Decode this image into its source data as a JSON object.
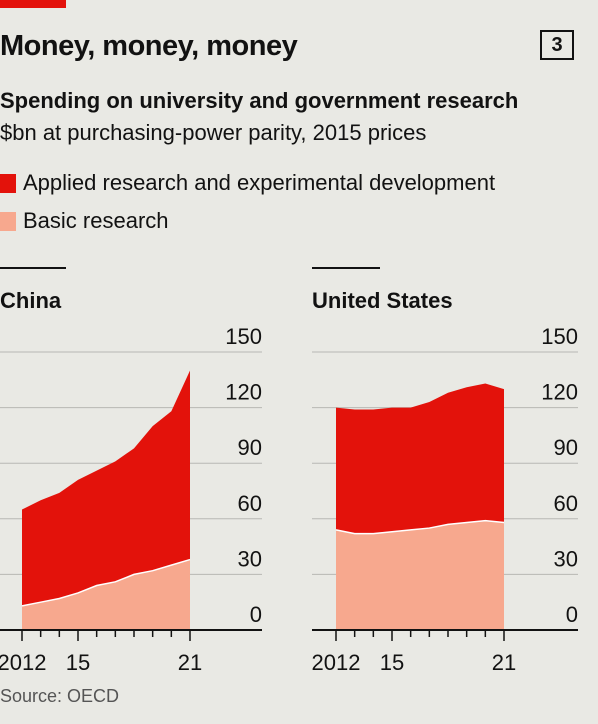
{
  "header": {
    "title": "Money, money, money",
    "chart_number": "3",
    "subtitle": "Spending on university and government research",
    "units": "$bn at purchasing-power parity, 2015 prices"
  },
  "source": "Source: OECD",
  "colors": {
    "applied": "#e3120b",
    "basic": "#f7a88e",
    "accent": "#e3120b"
  },
  "chart_data": [
    {
      "type": "area",
      "stacked": true,
      "title": "China",
      "x": [
        2012,
        2013,
        2014,
        2015,
        2016,
        2017,
        2018,
        2019,
        2020,
        2021
      ],
      "x_tick_labels": [
        "2012",
        "15",
        "21"
      ],
      "y_ticks": [
        "150",
        "120",
        "90",
        "60",
        "30",
        "0"
      ],
      "ylim": [
        0,
        150
      ],
      "legend": [
        "Applied research and experimental development",
        "Basic research"
      ],
      "legend_placement": "top-left",
      "grid": true,
      "series": [
        {
          "name": "Basic research",
          "values": [
            13,
            15,
            17,
            20,
            24,
            26,
            30,
            32,
            35,
            38
          ]
        },
        {
          "name": "Applied research and experimental development",
          "values": [
            52,
            55,
            57,
            61,
            62,
            65,
            68,
            78,
            83,
            102
          ]
        }
      ]
    },
    {
      "type": "area",
      "stacked": true,
      "title": "United States",
      "x": [
        2012,
        2013,
        2014,
        2015,
        2016,
        2017,
        2018,
        2019,
        2020,
        2021
      ],
      "x_tick_labels": [
        "2012",
        "15",
        "21"
      ],
      "y_ticks": [
        "150",
        "120",
        "90",
        "60",
        "30",
        "0"
      ],
      "ylim": [
        0,
        150
      ],
      "grid": true,
      "series": [
        {
          "name": "Basic research",
          "values": [
            54,
            52,
            52,
            53,
            54,
            55,
            57,
            58,
            59,
            58
          ]
        },
        {
          "name": "Applied research and experimental development",
          "values": [
            66,
            67,
            67,
            67,
            66,
            68,
            71,
            73,
            74,
            72
          ]
        }
      ]
    }
  ]
}
